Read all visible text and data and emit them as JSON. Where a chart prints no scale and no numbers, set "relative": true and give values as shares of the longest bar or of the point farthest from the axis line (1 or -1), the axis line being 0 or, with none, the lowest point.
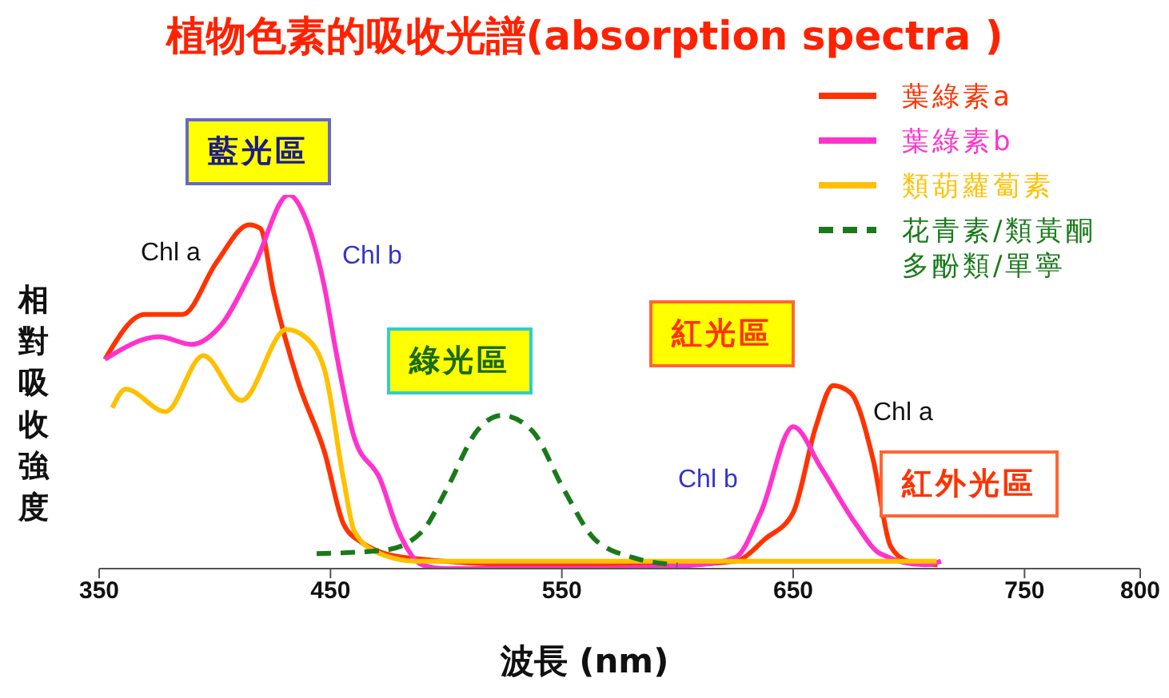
{
  "chart_data": {
    "type": "line",
    "title": "植物色素的吸收光譜(absorption spectra )",
    "xlabel": "波長 (nm)",
    "ylabel": "相對吸收強度",
    "relative": true,
    "xlim": [
      350,
      800
    ],
    "xticks": [
      350,
      450,
      550,
      650,
      750,
      800
    ],
    "legend": "top right",
    "marker": "none",
    "series": [
      {
        "name": "葉綠素a",
        "color": "#ff3300",
        "line_style": "solid",
        "x": [
          352.5,
          369.7,
          386,
          400.8,
          414.8,
          419.7,
          425.4,
          436,
          447.5,
          455.6,
          463.5,
          481.7,
          537,
          600,
          625,
          638,
          650,
          659.8,
          667.3,
          674.8,
          684.6,
          692.1,
          699.6,
          712.4
        ],
        "values": [
          0.56,
          0.68,
          0.68,
          0.82,
          0.92,
          0.91,
          0.74,
          0.5,
          0.31,
          0.12,
          0.07,
          0.03,
          0.01,
          0.01,
          0.02,
          0.08,
          0.15,
          0.38,
          0.49,
          0.47,
          0.29,
          0.06,
          0.02,
          0.01
        ]
      },
      {
        "name": "葉綠素b",
        "color": "#ff33cc",
        "line_style": "solid",
        "x": [
          352.5,
          376,
          390,
          402.5,
          417,
          432,
          439,
          447.5,
          452.4,
          460.3,
          471.4,
          479.4,
          489.7,
          500,
          560,
          608.7,
          625,
          636,
          650,
          662,
          677,
          687.6,
          707,
          713.9
        ],
        "values": [
          0.56,
          0.62,
          0.6,
          0.65,
          0.81,
          1,
          0.94,
          0.75,
          0.58,
          0.35,
          0.24,
          0.1,
          0.01,
          0,
          0,
          0.01,
          0.03,
          0.15,
          0.38,
          0.27,
          0.12,
          0.04,
          0.01,
          0.02
        ]
      },
      {
        "name": "類葫蘿蔔素",
        "color": "#ffc000",
        "line_style": "solid",
        "x": [
          355.7,
          361.5,
          378.7,
          395,
          411.5,
          431,
          439,
          447.5,
          455.6,
          460.3,
          471.4,
          487,
          600,
          712
        ],
        "values": [
          0.43,
          0.48,
          0.42,
          0.57,
          0.45,
          0.64,
          0.62,
          0.53,
          0.24,
          0.1,
          0.04,
          0.02,
          0.02,
          0.02
        ]
      },
      {
        "name": "花青素/類黃酮多酚類/單寧",
        "color": "#1a7a1a",
        "line_style": "dashed",
        "x": [
          444,
          474,
          489.7,
          500,
          513.5,
          524,
          537,
          551,
          564,
          580.5,
          600
        ],
        "values": [
          0.04,
          0.05,
          0.1,
          0.21,
          0.37,
          0.41,
          0.37,
          0.21,
          0.08,
          0.03,
          0.01
        ]
      }
    ],
    "annotations": [
      "Chl a",
      "Chl b",
      "Chl b",
      "Chl a",
      "藍光區",
      "綠光區",
      "紅光區",
      "紅外光區"
    ]
  }
}
